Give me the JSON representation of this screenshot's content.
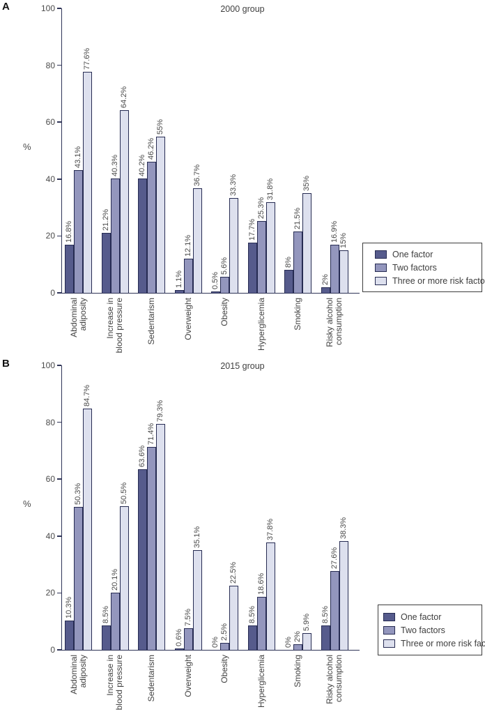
{
  "colors": {
    "series": [
      "#565b8c",
      "#9396bd",
      "#dde0ee"
    ],
    "bar_border": "#262b52",
    "axis": "#2f3457",
    "text": "#464646",
    "legend_border": "#3c3c3c"
  },
  "panels": [
    {
      "letter": "A"
    },
    {
      "letter": "B"
    }
  ],
  "chart_data": [
    {
      "type": "bar",
      "panel": "A",
      "title": "2000 group",
      "xlabel": "",
      "ylabel": "%",
      "ylim": [
        0,
        100
      ],
      "yticks": [
        0,
        20,
        40,
        60,
        80,
        100
      ],
      "grid": false,
      "legend_position": "right-bottom",
      "categories": [
        "Abdominal adiposity",
        "Increase in blood pressure",
        "Sedentarism",
        "Overweight",
        "Obesity",
        "Hyperglicemia",
        "Smoking",
        "Risky alcohol consumption"
      ],
      "category_lines": [
        [
          "Abdominal",
          "adiposity"
        ],
        [
          "Increase in",
          "blood pressure"
        ],
        [
          "Sedentarism"
        ],
        [
          "Overweight"
        ],
        [
          "Obesity"
        ],
        [
          "Hyperglicemia"
        ],
        [
          "Smoking"
        ],
        [
          "Risky alcohol",
          "consumption"
        ]
      ],
      "series": [
        {
          "name": "One factor",
          "values": [
            16.8,
            21.2,
            40.2,
            1.1,
            0.5,
            17.7,
            8,
            2
          ],
          "labels": [
            "16.8%",
            "21.2%",
            "40.2%",
            "1.1%",
            "0.5%",
            "17.7%",
            "8%",
            "2%"
          ]
        },
        {
          "name": "Two factors",
          "values": [
            43.1,
            40.3,
            46.2,
            12.1,
            5.6,
            25.3,
            21.5,
            16.9
          ],
          "labels": [
            "43.1%",
            "40.3%",
            "46.2%",
            "12.1%",
            "5.6%",
            "25.3%",
            "21.5%",
            "16.9%"
          ]
        },
        {
          "name": "Three or more risk factors",
          "values": [
            77.6,
            64.2,
            55,
            36.7,
            33.3,
            31.8,
            35,
            15
          ],
          "labels": [
            "77.6%",
            "64.2%",
            "55%",
            "36.7%",
            "33.3%",
            "31.8%",
            "35%",
            "15%"
          ]
        }
      ]
    },
    {
      "type": "bar",
      "panel": "B",
      "title": "2015 group",
      "xlabel": "",
      "ylabel": "%",
      "ylim": [
        0,
        100
      ],
      "yticks": [
        0,
        20,
        40,
        60,
        80,
        100
      ],
      "grid": false,
      "legend_position": "right-bottom",
      "categories": [
        "Abdominal adiposity",
        "Increase in blood pressure",
        "Sedentarism",
        "Overweight",
        "Obesity",
        "Hyperglicemia",
        "Smoking",
        "Risky alcohol consumption"
      ],
      "category_lines": [
        [
          "Abdominal",
          "adiposity"
        ],
        [
          "Increase in",
          "blood pressure"
        ],
        [
          "Sedentarism"
        ],
        [
          "Overweight"
        ],
        [
          "Obesity"
        ],
        [
          "Hyperglicemia"
        ],
        [
          "Smoking"
        ],
        [
          "Risky alcohol",
          "consumption"
        ]
      ],
      "series": [
        {
          "name": "One factor",
          "values": [
            10.3,
            8.5,
            63.6,
            0.6,
            0,
            8.5,
            0,
            8.5
          ],
          "labels": [
            "10.3%",
            "8.5%",
            "63.6%",
            "0.6%",
            "0%",
            "8.5%",
            "0%",
            "8.5%"
          ]
        },
        {
          "name": "Two factors",
          "values": [
            50.3,
            20.1,
            71.4,
            7.5,
            2.5,
            18.6,
            2,
            27.6
          ],
          "labels": [
            "50.3%",
            "20.1%",
            "71.4%",
            "7.5%",
            "2.5%",
            "18.6%",
            "2%",
            "27.6%"
          ]
        },
        {
          "name": "Three or more risk factors",
          "values": [
            84.7,
            50.5,
            79.3,
            35.1,
            22.5,
            37.8,
            5.9,
            38.3
          ],
          "labels": [
            "84.7%",
            "50.5%",
            "79.3%",
            "35.1%",
            "22.5%",
            "37.8%",
            "5.9%",
            "38.3%"
          ]
        }
      ]
    }
  ]
}
